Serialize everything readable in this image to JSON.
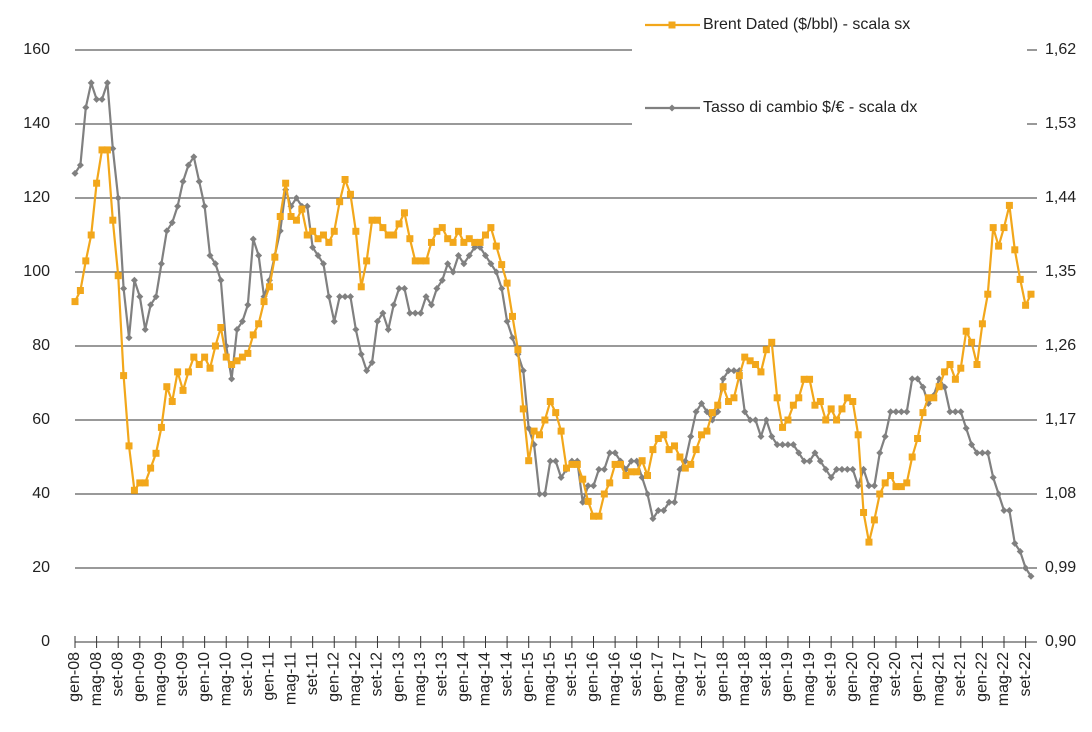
{
  "chart_data": {
    "type": "line",
    "categories": [
      "gen-08",
      null,
      null,
      null,
      "mag-08",
      null,
      null,
      null,
      "set-08",
      null,
      null,
      null,
      "gen-09",
      null,
      null,
      null,
      "mag-09",
      null,
      null,
      null,
      "set-09",
      null,
      null,
      null,
      "gen-10",
      null,
      null,
      null,
      "mag-10",
      null,
      null,
      null,
      "set-10",
      null,
      null,
      null,
      "gen-11",
      null,
      null,
      null,
      "mag-11",
      null,
      null,
      null,
      "set-11",
      null,
      null,
      null,
      "gen-12",
      null,
      null,
      null,
      "mag-12",
      null,
      null,
      null,
      "set-12",
      null,
      null,
      null,
      "gen-13",
      null,
      null,
      null,
      "mag-13",
      null,
      null,
      null,
      "set-13",
      null,
      null,
      null,
      "gen-14",
      null,
      null,
      null,
      "mag-14",
      null,
      null,
      null,
      "set-14",
      null,
      null,
      null,
      "gen-15",
      null,
      null,
      null,
      "mag-15",
      null,
      null,
      null,
      "set-15",
      null,
      null,
      null,
      "gen-16",
      null,
      null,
      null,
      "mag-16",
      null,
      null,
      null,
      "set-16",
      null,
      null,
      null,
      "gen-17",
      null,
      null,
      null,
      "mag-17",
      null,
      null,
      null,
      "set-17",
      null,
      null,
      null,
      "gen-18",
      null,
      null,
      null,
      "mag-18",
      null,
      null,
      null,
      "set-18",
      null,
      null,
      null,
      "gen-19",
      null,
      null,
      null,
      "mag-19",
      null,
      null,
      null,
      "set-19",
      null,
      null,
      null,
      "gen-20",
      null,
      null,
      null,
      "mag-20",
      null,
      null,
      null,
      "set-20",
      null,
      null,
      null,
      "gen-21",
      null,
      null,
      null,
      "mag-21",
      null,
      null,
      null,
      "set-21",
      null,
      null,
      null,
      "gen-22",
      null,
      null,
      null,
      "mag-22",
      null,
      null,
      null,
      "set-22",
      null
    ],
    "series": [
      {
        "name": "Brent Dated ($/bbl) - scala sx",
        "color": "#f2a71b",
        "axis": "y",
        "marker": "square",
        "values": [
          92,
          95,
          103,
          110,
          124,
          133,
          133,
          114,
          99,
          72,
          53,
          41,
          43,
          43,
          47,
          51,
          58,
          69,
          65,
          73,
          68,
          73,
          77,
          75,
          77,
          74,
          80,
          85,
          77,
          75,
          76,
          77,
          78,
          83,
          86,
          92,
          96,
          104,
          115,
          124,
          115,
          114,
          117,
          110,
          111,
          109,
          110,
          108,
          111,
          119,
          125,
          121,
          111,
          96,
          103,
          114,
          114,
          112,
          110,
          110,
          113,
          116,
          109,
          103,
          103,
          103,
          108,
          111,
          112,
          109,
          108,
          111,
          108,
          109,
          108,
          108,
          110,
          112,
          107,
          102,
          97,
          88,
          79,
          63,
          49,
          57,
          56,
          60,
          65,
          62,
          57,
          47,
          48,
          48,
          44,
          38,
          34,
          34,
          40,
          43,
          48,
          48,
          45,
          46,
          46,
          49,
          45,
          52,
          55,
          56,
          52,
          53,
          50,
          47,
          48,
          52,
          56,
          57,
          62,
          64,
          69,
          65,
          66,
          72,
          77,
          76,
          75,
          73,
          79,
          81,
          66,
          58,
          60,
          64,
          66,
          71,
          71,
          64,
          65,
          60,
          63,
          60,
          63,
          66,
          65,
          56,
          35,
          27,
          33,
          40,
          43,
          45,
          42,
          42,
          43,
          50,
          55,
          62,
          66,
          66,
          69,
          73,
          75,
          71,
          74,
          84,
          81,
          75,
          86,
          94,
          112,
          107,
          112,
          118,
          106,
          98,
          91,
          94
        ]
      },
      {
        "name": "Tasso di cambio $/€ - scala dx",
        "color": "#808080",
        "axis": "y2",
        "marker": "diamond",
        "values": [
          1.47,
          1.48,
          1.55,
          1.58,
          1.56,
          1.56,
          1.58,
          1.5,
          1.44,
          1.33,
          1.27,
          1.34,
          1.32,
          1.28,
          1.31,
          1.32,
          1.36,
          1.4,
          1.41,
          1.43,
          1.46,
          1.48,
          1.49,
          1.46,
          1.43,
          1.37,
          1.36,
          1.34,
          1.26,
          1.22,
          1.28,
          1.29,
          1.31,
          1.39,
          1.37,
          1.32,
          1.34,
          1.37,
          1.4,
          1.45,
          1.43,
          1.44,
          1.43,
          1.43,
          1.38,
          1.37,
          1.36,
          1.32,
          1.29,
          1.32,
          1.32,
          1.32,
          1.28,
          1.25,
          1.23,
          1.24,
          1.29,
          1.3,
          1.28,
          1.31,
          1.33,
          1.33,
          1.3,
          1.3,
          1.3,
          1.32,
          1.31,
          1.33,
          1.34,
          1.36,
          1.35,
          1.37,
          1.36,
          1.37,
          1.38,
          1.38,
          1.37,
          1.36,
          1.35,
          1.33,
          1.29,
          1.27,
          1.25,
          1.23,
          1.16,
          1.14,
          1.08,
          1.08,
          1.12,
          1.12,
          1.1,
          1.11,
          1.12,
          1.12,
          1.07,
          1.09,
          1.09,
          1.11,
          1.11,
          1.13,
          1.13,
          1.12,
          1.11,
          1.12,
          1.12,
          1.1,
          1.08,
          1.05,
          1.06,
          1.06,
          1.07,
          1.07,
          1.11,
          1.12,
          1.15,
          1.18,
          1.19,
          1.18,
          1.17,
          1.18,
          1.22,
          1.23,
          1.23,
          1.23,
          1.18,
          1.17,
          1.17,
          1.15,
          1.17,
          1.15,
          1.14,
          1.14,
          1.14,
          1.14,
          1.13,
          1.12,
          1.12,
          1.13,
          1.12,
          1.11,
          1.1,
          1.11,
          1.11,
          1.11,
          1.11,
          1.09,
          1.11,
          1.09,
          1.09,
          1.13,
          1.15,
          1.18,
          1.18,
          1.18,
          1.18,
          1.22,
          1.22,
          1.21,
          1.19,
          1.2,
          1.22,
          1.21,
          1.18,
          1.18,
          1.18,
          1.16,
          1.14,
          1.13,
          1.13,
          1.13,
          1.1,
          1.08,
          1.06,
          1.06,
          1.02,
          1.01,
          0.99,
          0.98
        ]
      }
    ],
    "ylim": [
      0,
      160
    ],
    "yticks": [
      0,
      20,
      40,
      60,
      80,
      100,
      120,
      140,
      160
    ],
    "y2lim": [
      0.9,
      1.62
    ],
    "y2ticks": [
      {
        "value": 0.9,
        "label": "0,90"
      },
      {
        "value": 0.99,
        "label": "0,99"
      },
      {
        "value": 1.08,
        "label": "1,08"
      },
      {
        "value": 1.17,
        "label": "1,17"
      },
      {
        "value": 1.26,
        "label": "1,26"
      },
      {
        "value": 1.35,
        "label": "1,35"
      },
      {
        "value": 1.44,
        "label": "1,44"
      },
      {
        "value": 1.53,
        "label": "1,53"
      },
      {
        "value": 1.62,
        "label": "1,62"
      }
    ],
    "grid": true,
    "legend": "top-right"
  }
}
